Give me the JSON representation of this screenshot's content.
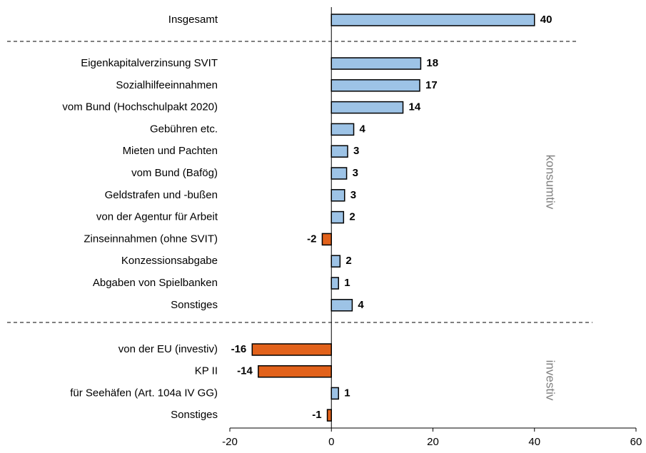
{
  "chart_data": {
    "type": "bar",
    "orientation": "horizontal",
    "categories": [
      "Insgesamt",
      "Eigenkapitalverzinsung SVIT",
      "Sozialhilfeeinnahmen",
      "vom Bund (Hochschulpakt 2020)",
      "Gebühren etc.",
      "Mieten und Pachten",
      "vom Bund (Bafög)",
      "Geldstrafen und -bußen",
      "von der Agentur für Arbeit",
      "Zinseinnahmen (ohne SVIT)",
      "Konzessionsabgabe",
      "Abgaben von Spielbanken",
      "Sonstiges",
      "von der EU (investiv)",
      "KP II",
      "für Seehäfen (Art. 104a IV GG)",
      "Sonstiges"
    ],
    "values": [
      40,
      17.6,
      17.4,
      14.1,
      4.4,
      3.2,
      3.0,
      2.6,
      2.4,
      -1.8,
      1.7,
      1.4,
      4.1,
      -15.6,
      -14.4,
      1.4,
      -0.8
    ],
    "value_labels": [
      "40",
      "18",
      "17",
      "14",
      "4",
      "3",
      "3",
      "3",
      "2",
      "-2",
      "2",
      "1",
      "4",
      "-16",
      "-14",
      "1",
      "-1"
    ],
    "color": "#9dc3e6",
    "negative_color": "#e2621b",
    "annotations": [
      "konsumtiv",
      "investiv"
    ],
    "xlim": [
      -20,
      60
    ],
    "xticks": [
      -20,
      0,
      20,
      40,
      60
    ]
  }
}
